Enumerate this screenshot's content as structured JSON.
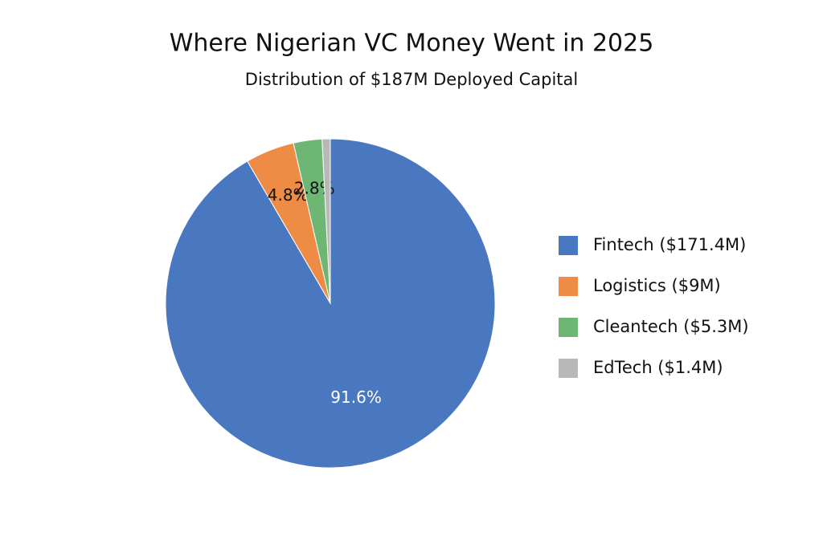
{
  "chart_data": {
    "type": "pie",
    "title": "Where Nigerian VC Money Went in 2025",
    "subtitle": "Distribution of $187M Deployed Capital",
    "categories": [
      "Fintech ($171.4M)",
      "Logistics ($9M)",
      "Cleantech ($5.3M)",
      "EdTech ($1.4M)"
    ],
    "values": [
      91.6,
      4.8,
      2.8,
      0.8
    ],
    "value_labels": [
      "91.6%",
      "4.8%",
      "2.8%",
      null
    ],
    "colors": [
      "#4a78c0",
      "#ee8c45",
      "#6db674",
      "#b8b8b8"
    ],
    "legend": "right"
  }
}
